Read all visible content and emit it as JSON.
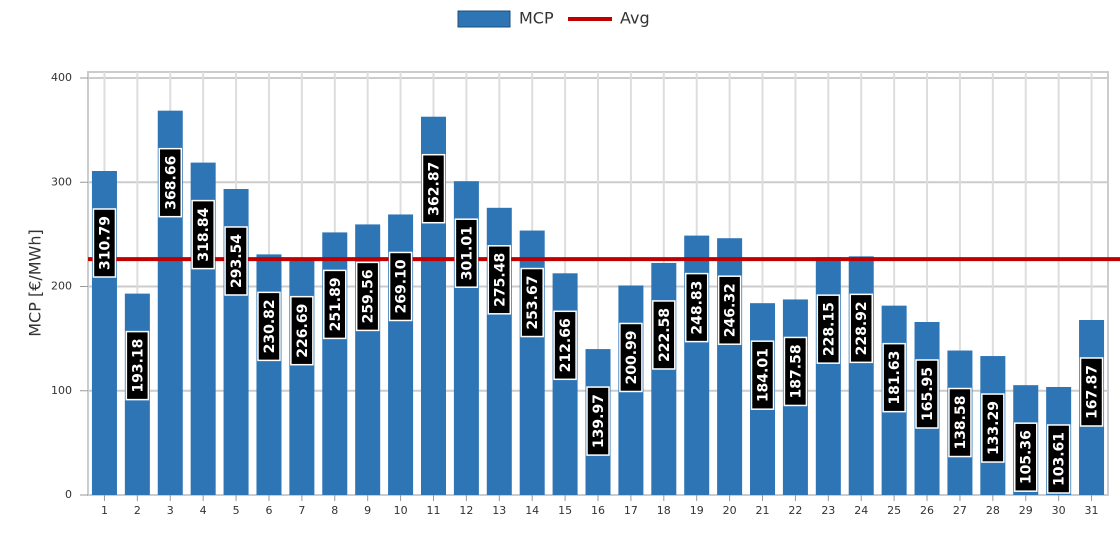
{
  "chart_data": {
    "type": "bar",
    "y_label": "MCP [€/MWh]",
    "categories": [
      "1",
      "2",
      "3",
      "4",
      "5",
      "6",
      "7",
      "8",
      "9",
      "10",
      "11",
      "12",
      "13",
      "14",
      "15",
      "16",
      "17",
      "18",
      "19",
      "20",
      "21",
      "22",
      "23",
      "24",
      "25",
      "26",
      "27",
      "28",
      "29",
      "30",
      "31"
    ],
    "series": [
      {
        "name": "MCP",
        "color": "#2e75b6",
        "values": [
          310.79,
          193.18,
          368.66,
          318.84,
          293.54,
          230.82,
          226.69,
          251.89,
          259.56,
          269.1,
          362.87,
          301.01,
          275.48,
          253.67,
          212.66,
          139.97,
          200.99,
          222.58,
          248.83,
          246.32,
          184.01,
          187.58,
          228.15,
          228.92,
          181.63,
          165.95,
          138.58,
          133.29,
          105.36,
          103.61,
          167.87
        ],
        "value_labels": [
          "310.79",
          "193.18",
          "368.66",
          "318.84",
          "293.54",
          "230.82",
          "226.69",
          "251.89",
          "259.56",
          "269.10",
          "362.87",
          "301.01",
          "275.48",
          "253.67",
          "212.66",
          "139.97",
          "200.99",
          "222.58",
          "248.83",
          "246.32",
          "184.01",
          "187.58",
          "228.15",
          "228.92",
          "181.63",
          "165.95",
          "138.58",
          "133.29",
          "105.36",
          "103.61",
          "167.87"
        ]
      },
      {
        "name": "Avg",
        "color": "#c00000",
        "type": "line",
        "value": 226.21
      }
    ],
    "ylim": [
      0,
      400
    ],
    "yticks": [
      0,
      100,
      200,
      300,
      400
    ],
    "grid": true
  }
}
